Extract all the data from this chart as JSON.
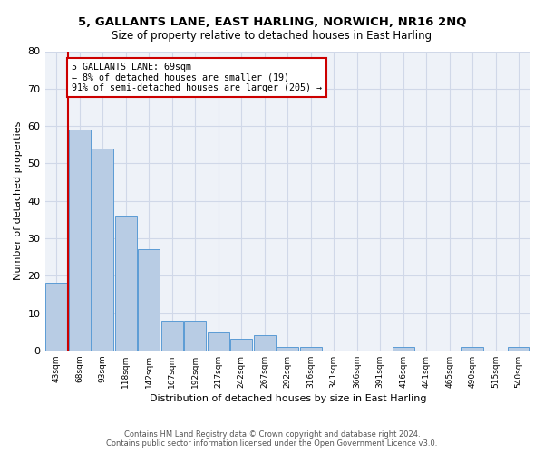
{
  "title": "5, GALLANTS LANE, EAST HARLING, NORWICH, NR16 2NQ",
  "subtitle": "Size of property relative to detached houses in East Harling",
  "xlabel": "Distribution of detached houses by size in East Harling",
  "ylabel": "Number of detached properties",
  "categories": [
    "43sqm",
    "68sqm",
    "93sqm",
    "118sqm",
    "142sqm",
    "167sqm",
    "192sqm",
    "217sqm",
    "242sqm",
    "267sqm",
    "292sqm",
    "316sqm",
    "341sqm",
    "366sqm",
    "391sqm",
    "416sqm",
    "441sqm",
    "465sqm",
    "490sqm",
    "515sqm",
    "540sqm"
  ],
  "values": [
    18,
    59,
    54,
    36,
    27,
    8,
    8,
    5,
    3,
    4,
    1,
    1,
    0,
    0,
    0,
    1,
    0,
    0,
    1,
    0,
    1
  ],
  "bar_color": "#b8cce4",
  "bar_edge_color": "#5b9bd5",
  "property_bar_index": 1,
  "property_label": "5 GALLANTS LANE: 69sqm",
  "annotation_line1": "← 8% of detached houses are smaller (19)",
  "annotation_line2": "91% of semi-detached houses are larger (205) →",
  "annotation_box_color": "#ffffff",
  "annotation_box_edge": "#cc0000",
  "property_line_color": "#cc0000",
  "ylim": [
    0,
    80
  ],
  "yticks": [
    0,
    10,
    20,
    30,
    40,
    50,
    60,
    70,
    80
  ],
  "grid_color": "#d0d8e8",
  "bg_color": "#eef2f8",
  "footer1": "Contains HM Land Registry data © Crown copyright and database right 2024.",
  "footer2": "Contains public sector information licensed under the Open Government Licence v3.0."
}
